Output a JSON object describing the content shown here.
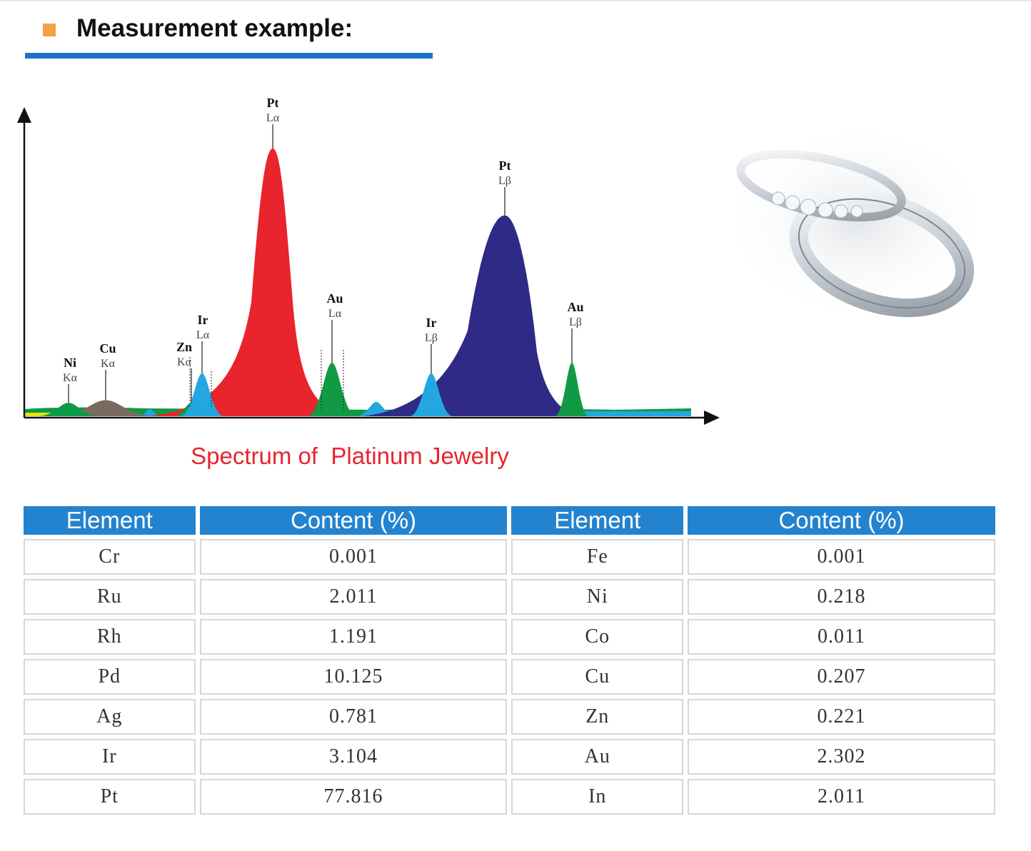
{
  "section": {
    "heading": "Measurement example:"
  },
  "chart_data": {
    "type": "area",
    "title": "",
    "caption": "Spectrum of  Platinum Jewelry",
    "xlabel": "",
    "ylabel": "",
    "grid": false,
    "peaks": [
      {
        "element": "Ni",
        "line": "Kα",
        "intensity": 0.05
      },
      {
        "element": "Cu",
        "line": "Kα",
        "intensity": 0.06,
        "color": "#7a6a60"
      },
      {
        "element": "Zn",
        "line": "Kα",
        "intensity": 0.05
      },
      {
        "element": "Ir",
        "line": "Lα",
        "intensity": 0.16,
        "color": "#22a7e0"
      },
      {
        "element": "Pt",
        "line": "Lα",
        "intensity": 1.0,
        "color": "#e8242d"
      },
      {
        "element": "Au",
        "line": "Lα",
        "intensity": 0.2,
        "color": "#119a45"
      },
      {
        "element": "Ir",
        "line": "Lβ",
        "intensity": 0.16,
        "color": "#22a7e0"
      },
      {
        "element": "Pt",
        "line": "Lβ",
        "intensity": 0.75,
        "color": "#2e2a86"
      },
      {
        "element": "Au",
        "line": "Lβ",
        "intensity": 0.2,
        "color": "#119a45"
      }
    ]
  },
  "table": {
    "headers": [
      "Element",
      "Content (%)",
      "Element",
      "Content (%)"
    ],
    "rows": [
      [
        "Cr",
        "0.001",
        "Fe",
        "0.001"
      ],
      [
        "Ru",
        "2.011",
        "Ni",
        "0.218"
      ],
      [
        "Rh",
        "1.191",
        "Co",
        "0.011"
      ],
      [
        "Pd",
        "10.125",
        "Cu",
        "0.207"
      ],
      [
        "Ag",
        "0.781",
        "Zn",
        "0.221"
      ],
      [
        "Ir",
        "3.104",
        "Au",
        "2.302"
      ],
      [
        "Pt",
        "77.816",
        "In",
        "2.011"
      ]
    ]
  },
  "colors": {
    "accent": "#1b74c9",
    "bullet": "#f5a042",
    "caption": "#e8242d",
    "table_header": "#2383cf"
  }
}
